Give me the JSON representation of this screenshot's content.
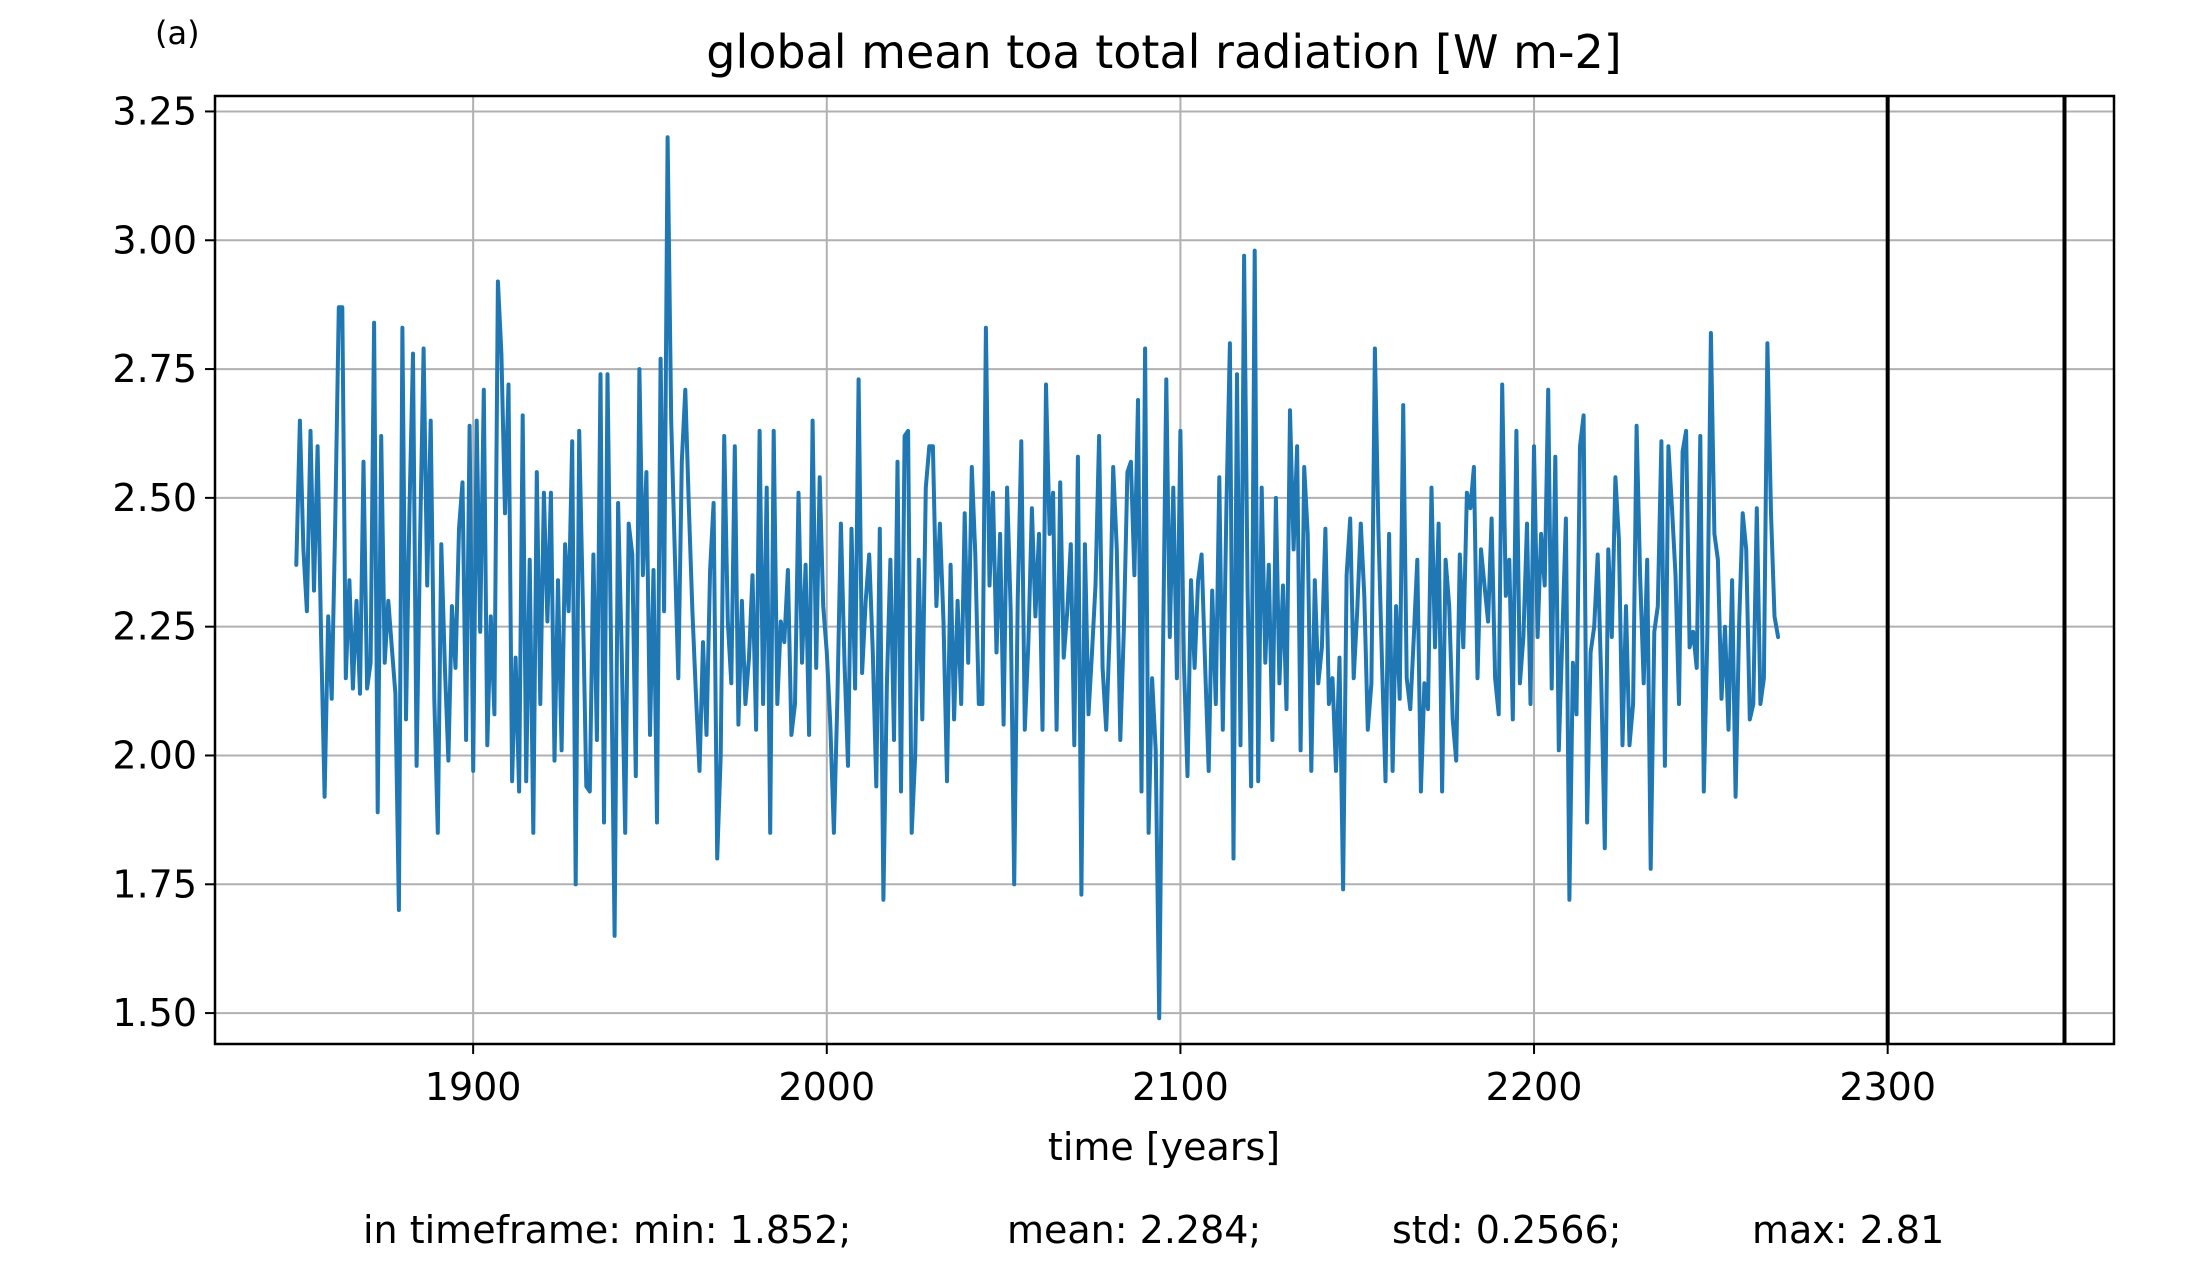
{
  "panel_label": "(a)",
  "stats": {
    "min": "in timeframe: min: 1.852;",
    "mean": "mean: 2.284;",
    "std": "std: 0.2566;",
    "max": "max: 2.81"
  },
  "colors": {
    "series": "#1f77b4",
    "grid": "#b0b0b0",
    "vline": "#000000"
  },
  "chart_data": {
    "type": "line",
    "title": "global mean toa total radiation [W m-2]",
    "xlabel": "time [years]",
    "ylabel": "",
    "xlim": [
      1827,
      2364
    ],
    "ylim": [
      1.44,
      3.28
    ],
    "xticks": [
      1900,
      2000,
      2100,
      2200,
      2300
    ],
    "yticks": [
      1.5,
      1.75,
      2.0,
      2.25,
      2.5,
      2.75,
      3.0,
      3.25
    ],
    "ytick_labels": [
      "1.50",
      "1.75",
      "2.00",
      "2.25",
      "2.50",
      "2.75",
      "3.00",
      "3.25"
    ],
    "grid": true,
    "vlines": [
      2300,
      2350
    ],
    "series": [
      {
        "name": "",
        "x_start": 1850,
        "x_step": 1,
        "values": [
          2.37,
          2.65,
          2.4,
          2.28,
          2.63,
          2.32,
          2.6,
          2.23,
          1.92,
          2.27,
          2.11,
          2.45,
          2.87,
          2.87,
          2.15,
          2.34,
          2.13,
          2.3,
          2.12,
          2.57,
          2.13,
          2.18,
          2.84,
          1.89,
          2.62,
          2.18,
          2.3,
          2.21,
          2.12,
          1.7,
          2.83,
          2.07,
          2.48,
          2.78,
          1.98,
          2.42,
          2.79,
          2.33,
          2.65,
          2.11,
          1.85,
          2.41,
          2.17,
          1.99,
          2.29,
          2.17,
          2.44,
          2.53,
          2.03,
          2.64,
          1.97,
          2.65,
          2.24,
          2.71,
          2.02,
          2.27,
          2.08,
          2.92,
          2.78,
          2.47,
          2.72,
          1.95,
          2.19,
          1.93,
          2.66,
          1.95,
          2.38,
          1.85,
          2.55,
          2.1,
          2.51,
          2.26,
          2.51,
          1.99,
          2.34,
          2.01,
          2.41,
          2.28,
          2.61,
          1.75,
          2.63,
          2.3,
          1.94,
          1.93,
          2.39,
          2.03,
          2.74,
          1.87,
          2.74,
          2.2,
          1.65,
          2.49,
          2.2,
          1.85,
          2.45,
          2.39,
          1.96,
          2.75,
          2.35,
          2.55,
          2.04,
          2.36,
          1.87,
          2.77,
          2.28,
          3.2,
          2.65,
          2.4,
          2.15,
          2.57,
          2.71,
          2.48,
          2.28,
          2.12,
          1.97,
          2.22,
          2.04,
          2.36,
          2.49,
          1.8,
          2.0,
          2.62,
          2.26,
          2.14,
          2.6,
          2.06,
          2.3,
          2.1,
          2.19,
          2.35,
          2.05,
          2.63,
          2.1,
          2.52,
          1.85,
          2.63,
          2.1,
          2.26,
          2.22,
          2.36,
          2.04,
          2.1,
          2.51,
          2.18,
          2.37,
          2.04,
          2.65,
          2.17,
          2.54,
          2.29,
          2.2,
          2.06,
          1.85,
          2.11,
          2.45,
          2.18,
          1.98,
          2.44,
          2.13,
          2.73,
          2.16,
          2.3,
          2.39,
          2.2,
          1.94,
          2.44,
          1.72,
          2.14,
          2.38,
          2.03,
          2.57,
          1.93,
          2.62,
          2.63,
          1.85,
          2.0,
          2.38,
          2.07,
          2.52,
          2.6,
          2.6,
          2.29,
          2.45,
          2.26,
          1.95,
          2.37,
          2.07,
          2.3,
          2.1,
          2.47,
          2.18,
          2.56,
          2.39,
          2.1,
          2.1,
          2.83,
          2.33,
          2.51,
          2.2,
          2.43,
          2.06,
          2.52,
          2.28,
          1.75,
          2.3,
          2.61,
          2.05,
          2.22,
          2.48,
          2.27,
          2.43,
          2.05,
          2.72,
          2.43,
          2.51,
          2.05,
          2.53,
          2.19,
          2.28,
          2.41,
          2.02,
          2.58,
          1.73,
          2.41,
          2.08,
          2.2,
          2.33,
          2.62,
          2.17,
          2.05,
          2.24,
          2.56,
          2.4,
          2.03,
          2.24,
          2.55,
          2.57,
          2.35,
          2.69,
          1.93,
          2.79,
          1.85,
          2.15,
          2.01,
          1.49,
          2.15,
          2.73,
          2.23,
          2.52,
          2.15,
          2.63,
          2.18,
          1.96,
          2.34,
          2.17,
          2.34,
          2.39,
          2.17,
          1.97,
          2.32,
          2.1,
          2.54,
          2.05,
          2.48,
          2.8,
          1.8,
          2.74,
          2.02,
          2.97,
          2.32,
          1.94,
          2.98,
          1.95,
          2.52,
          2.18,
          2.37,
          2.03,
          2.5,
          2.14,
          2.33,
          2.09,
          2.67,
          2.4,
          2.6,
          2.01,
          2.56,
          2.43,
          1.97,
          2.34,
          2.14,
          2.21,
          2.44,
          2.1,
          2.15,
          1.97,
          2.19,
          1.74,
          2.35,
          2.46,
          2.15,
          2.28,
          2.45,
          2.31,
          2.05,
          2.14,
          2.79,
          2.44,
          2.18,
          1.95,
          2.43,
          1.97,
          2.29,
          2.11,
          2.68,
          2.15,
          2.09,
          2.23,
          2.38,
          1.93,
          2.14,
          2.09,
          2.52,
          2.21,
          2.45,
          1.93,
          2.38,
          2.29,
          2.07,
          1.99,
          2.39,
          2.21,
          2.51,
          2.48,
          2.56,
          2.15,
          2.4,
          2.33,
          2.26,
          2.46,
          2.15,
          2.08,
          2.72,
          2.31,
          2.38,
          2.07,
          2.63,
          2.14,
          2.23,
          2.45,
          2.1,
          2.6,
          2.23,
          2.43,
          2.33,
          2.71,
          2.13,
          2.58,
          2.01,
          2.23,
          2.46,
          1.72,
          2.18,
          2.08,
          2.6,
          2.66,
          1.87,
          2.2,
          2.25,
          2.39,
          2.15,
          1.82,
          2.4,
          2.23,
          2.54,
          2.42,
          2.02,
          2.29,
          2.02,
          2.1,
          2.64,
          2.35,
          2.14,
          2.38,
          1.78,
          2.24,
          2.29,
          2.61,
          1.98,
          2.6,
          2.48,
          2.35,
          2.1,
          2.59,
          2.63,
          2.21,
          2.24,
          2.17,
          2.62,
          1.93,
          2.23,
          2.82,
          2.43,
          2.38,
          2.11,
          2.25,
          2.05,
          2.34,
          1.92,
          2.26,
          2.47,
          2.4,
          2.07,
          2.1,
          2.48,
          2.1,
          2.15,
          2.8,
          2.47,
          2.27,
          2.23
        ]
      }
    ]
  }
}
